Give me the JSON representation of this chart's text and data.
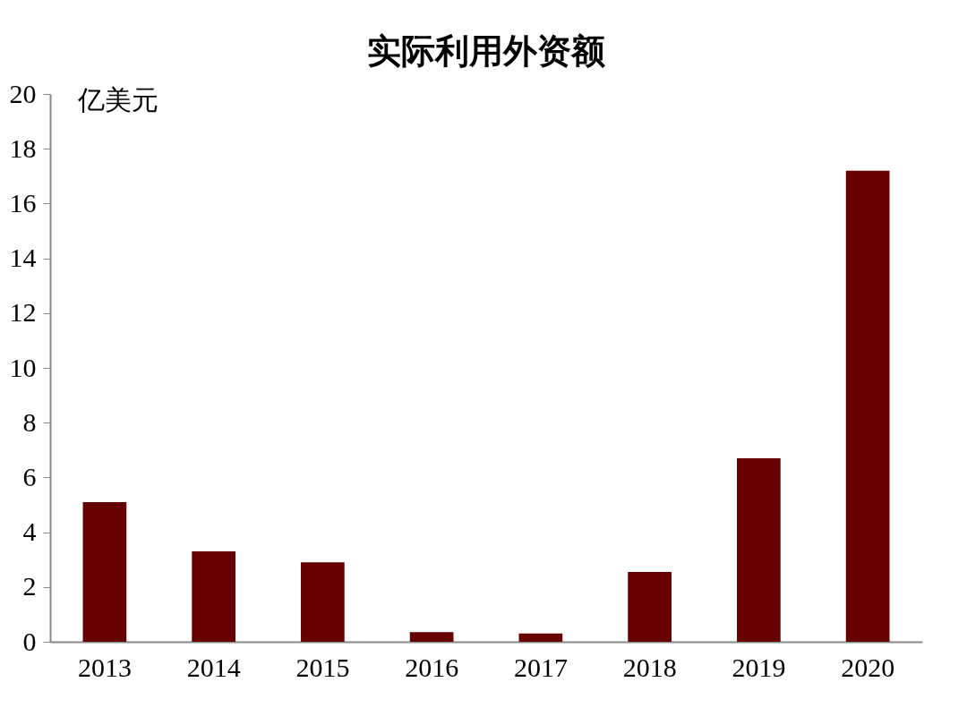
{
  "chart_data": {
    "type": "bar",
    "title": "实际利用外资额",
    "ylabel": "亿美元",
    "categories": [
      "2013",
      "2014",
      "2015",
      "2016",
      "2017",
      "2018",
      "2019",
      "2020"
    ],
    "values": [
      5.1,
      3.3,
      2.9,
      0.35,
      0.3,
      2.55,
      6.7,
      17.2
    ],
    "color": "#660000",
    "ylim": [
      0,
      20
    ],
    "yticks": [
      0,
      2,
      4,
      6,
      8,
      10,
      12,
      14,
      16,
      18,
      20
    ],
    "grid": false
  }
}
